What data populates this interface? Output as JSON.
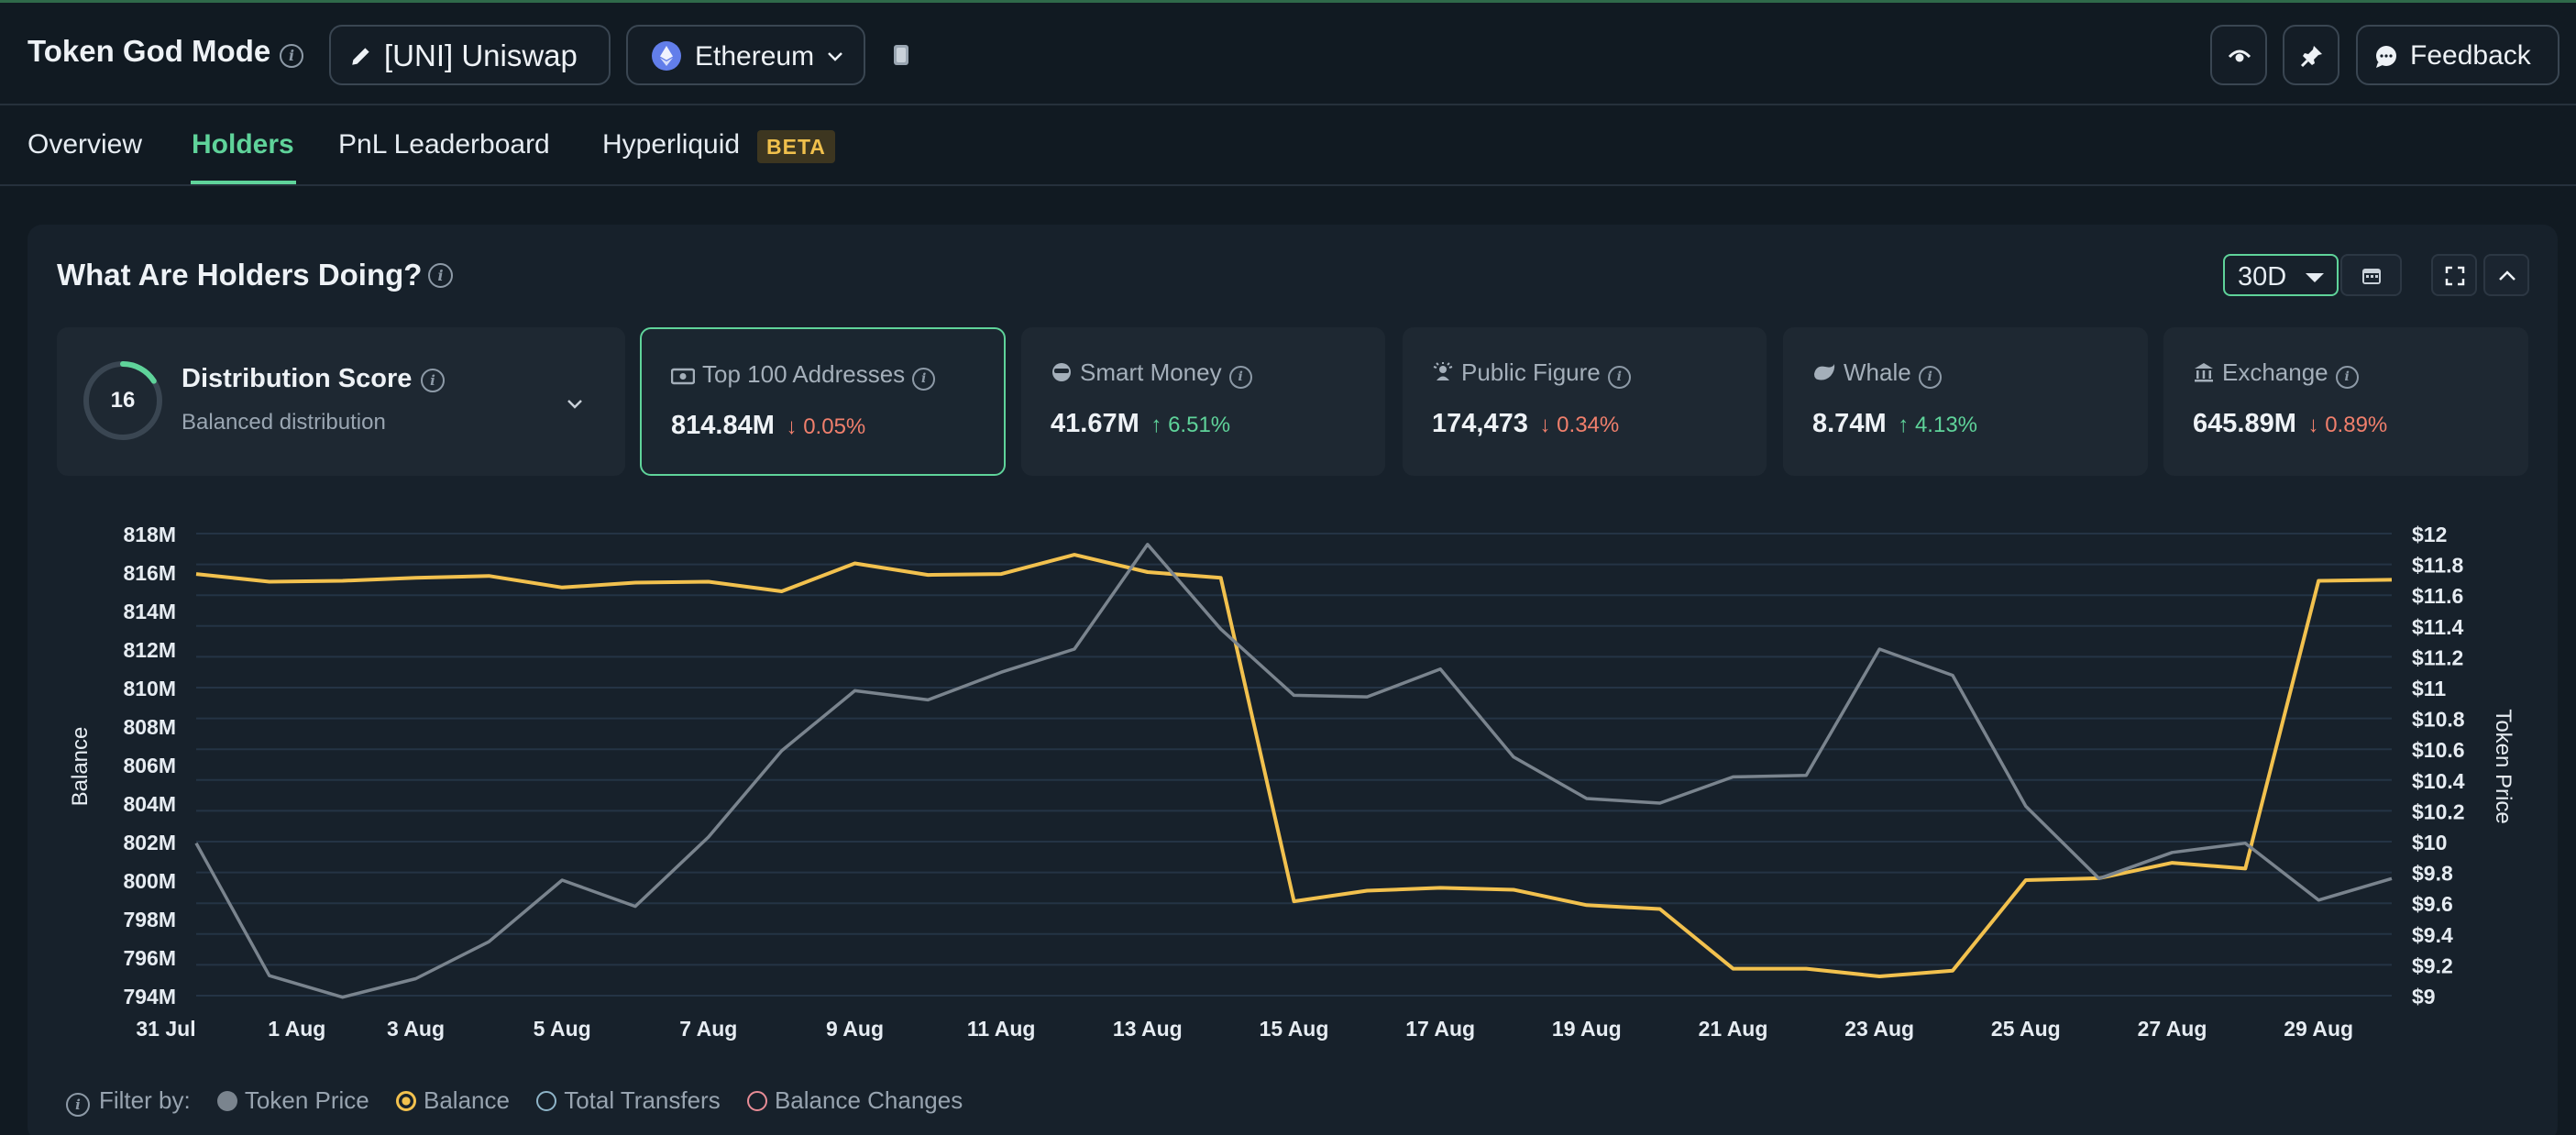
{
  "header": {
    "title": "Token God Mode",
    "token_label": "[UNI] Uniswap",
    "chain_label": "Ethereum",
    "feedback_label": "Feedback"
  },
  "tabs": [
    {
      "label": "Overview",
      "active": false
    },
    {
      "label": "Holders",
      "active": true
    },
    {
      "label": "PnL Leaderboard",
      "active": false
    },
    {
      "label": "Hyperliquid",
      "active": false,
      "badge": "BETA"
    }
  ],
  "panel": {
    "title": "What Are Holders Doing?",
    "range": "30D"
  },
  "distribution": {
    "score": "16",
    "score_fraction": 0.16,
    "title": "Distribution Score",
    "subtitle": "Balanced distribution"
  },
  "cards": [
    {
      "label": "Top 100 Addresses",
      "value": "814.84M",
      "change": "0.05%",
      "direction": "down",
      "icon": "money-icon",
      "selected": true
    },
    {
      "label": "Smart Money",
      "value": "41.67M",
      "change": "6.51%",
      "direction": "up",
      "icon": "smart-money-icon",
      "selected": false
    },
    {
      "label": "Public Figure",
      "value": "174,473",
      "change": "0.34%",
      "direction": "down",
      "icon": "public-figure-icon",
      "selected": false
    },
    {
      "label": "Whale",
      "value": "8.74M",
      "change": "4.13%",
      "direction": "up",
      "icon": "whale-icon",
      "selected": false
    },
    {
      "label": "Exchange",
      "value": "645.89M",
      "change": "0.89%",
      "direction": "down",
      "icon": "exchange-icon",
      "selected": false
    }
  ],
  "chart_data": {
    "type": "line",
    "xlabel": "",
    "ylabel": "Balance",
    "y2label": "Token Price",
    "ylim": [
      794,
      818
    ],
    "y2lim": [
      9,
      12
    ],
    "grid": true,
    "y_ticks": [
      "794M",
      "796M",
      "798M",
      "800M",
      "802M",
      "804M",
      "806M",
      "808M",
      "810M",
      "812M",
      "814M",
      "816M",
      "818M"
    ],
    "y2_ticks": [
      "$9",
      "$9.2",
      "$9.4",
      "$9.6",
      "$9.8",
      "$10",
      "$10.2",
      "$10.4",
      "$10.6",
      "$10.8",
      "$11",
      "$11.2",
      "$11.4",
      "$11.6",
      "$11.8",
      "$12"
    ],
    "x_ticks": [
      "31 Jul",
      "1 Aug",
      "3 Aug",
      "5 Aug",
      "7 Aug",
      "9 Aug",
      "11 Aug",
      "13 Aug",
      "15 Aug",
      "17 Aug",
      "19 Aug",
      "21 Aug",
      "23 Aug",
      "25 Aug",
      "27 Aug",
      "29 Aug"
    ],
    "x": [
      "31 Jul",
      "1 Aug",
      "2 Aug",
      "3 Aug",
      "4 Aug",
      "5 Aug",
      "6 Aug",
      "7 Aug",
      "8 Aug",
      "9 Aug",
      "10 Aug",
      "11 Aug",
      "12 Aug",
      "13 Aug",
      "14 Aug",
      "15 Aug",
      "16 Aug",
      "17 Aug",
      "18 Aug",
      "19 Aug",
      "20 Aug",
      "21 Aug",
      "22 Aug",
      "23 Aug",
      "24 Aug",
      "25 Aug",
      "26 Aug",
      "27 Aug",
      "28 Aug",
      "29 Aug",
      "30 Aug"
    ],
    "series": [
      {
        "name": "Balance",
        "axis": "left",
        "color": "#f2c14e",
        "values": [
          815.9,
          815.5,
          815.55,
          815.7,
          815.8,
          815.2,
          815.45,
          815.5,
          815.0,
          816.45,
          815.85,
          815.9,
          816.9,
          816.0,
          815.7,
          798.9,
          799.45,
          799.6,
          799.5,
          798.7,
          798.5,
          795.4,
          795.4,
          795.0,
          795.3,
          800.0,
          800.1,
          800.9,
          800.6,
          815.55,
          815.6
        ]
      },
      {
        "name": "Token Price",
        "axis": "right",
        "color": "#7a848e",
        "values": [
          9.99,
          9.13,
          8.99,
          9.11,
          9.35,
          9.75,
          9.58,
          10.03,
          10.59,
          10.98,
          10.92,
          11.1,
          11.25,
          11.93,
          11.38,
          10.95,
          10.94,
          11.12,
          10.55,
          10.28,
          10.25,
          10.42,
          10.43,
          11.25,
          11.08,
          10.23,
          9.76,
          9.93,
          9.99,
          9.62,
          9.76
        ]
      }
    ]
  },
  "filter": {
    "label": "Filter by:",
    "options": [
      {
        "label": "Token Price",
        "state": "filled",
        "color": "#7a848e"
      },
      {
        "label": "Balance",
        "state": "selected",
        "color": "#f2c14e"
      },
      {
        "label": "Total Transfers",
        "state": "empty",
        "color": "#8fb5c9"
      },
      {
        "label": "Balance Changes",
        "state": "empty",
        "color": "#e88c96"
      }
    ]
  },
  "colors": {
    "accent": "#5fd39a",
    "down": "#f07f6c",
    "up": "#5fd39a",
    "background": "#111a22",
    "panel": "#17212b"
  }
}
